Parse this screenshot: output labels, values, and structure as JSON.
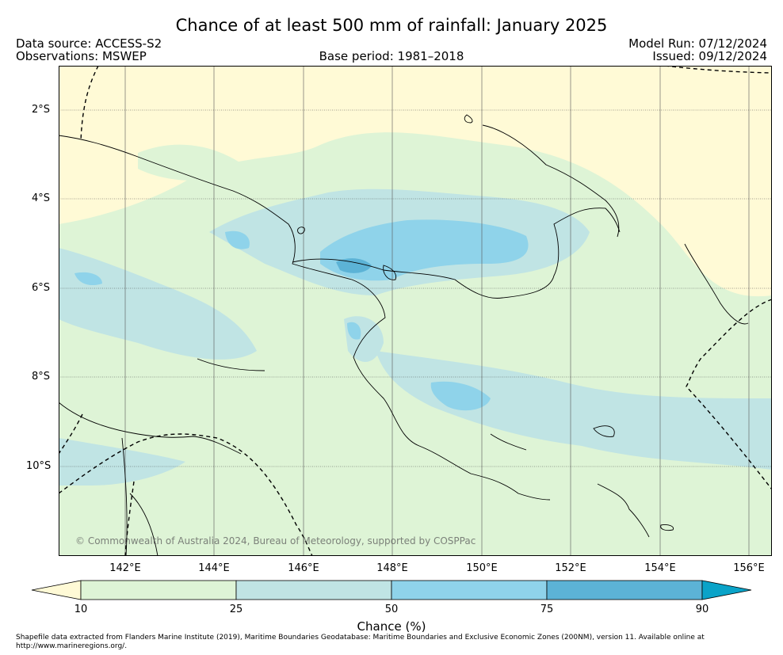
{
  "title": "Chance of at least 500 mm of rainfall: January 2025",
  "data_source": "Data source: ACCESS-S2",
  "observations": "Observations: MSWEP",
  "base_period": "Base period: 1981–2018",
  "model_run": "Model Run: 07/12/2024",
  "issued": "Issued: 09/12/2024",
  "copyright": "© Commonwealth of Australia 2024, Bureau of Meteorology, supported by COSPPac",
  "lat_labels": [
    "2°S",
    "4°S",
    "6°S",
    "8°S",
    "10°S"
  ],
  "lon_labels": [
    "142°E",
    "144°E",
    "146°E",
    "148°E",
    "150°E",
    "152°E",
    "154°E",
    "156°E"
  ],
  "colorbar": {
    "title": "Chance (%)",
    "ticks": [
      "10",
      "25",
      "50",
      "75",
      "90"
    ],
    "colors": {
      "below_10": "#fffad6",
      "10_25": "#def4d6",
      "25_50": "#c0e4e4",
      "50_75": "#8fd3ea",
      "75_90": "#5cb3d6",
      "above_90": "#0aa3c8"
    }
  },
  "footnote": "Shapefile data extracted from Flanders Marine Institute (2019), Maritime Boundaries Geodatabase: Maritime Boundaries and Exclusive Economic Zones (200NM), version 11. Available online at http://www.marineregions.org/."
}
